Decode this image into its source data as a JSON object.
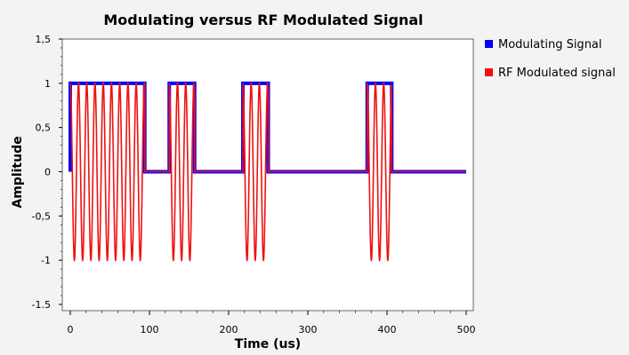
{
  "colors": {
    "modulating": "#0000ff",
    "modulated": "#ee1111",
    "plot_bg": "#ffffff",
    "page_bg": "#f3f3f3"
  },
  "chart_data": {
    "type": "line",
    "title": "Modulating versus RF Modulated Signal",
    "xlabel": "Time (us)",
    "ylabel": "Amplitude",
    "xlim": [
      0,
      500
    ],
    "ylim": [
      -1.5,
      1.5
    ],
    "x_ticks": [
      0,
      100,
      200,
      300,
      400,
      500
    ],
    "x_tick_labels": [
      "0",
      "100",
      "200",
      "300",
      "400",
      "500"
    ],
    "y_ticks": [
      1.5,
      1,
      0.5,
      0,
      -0.5,
      -1,
      -1.5
    ],
    "y_tick_labels": [
      "1,5",
      "1",
      "0,5",
      "0",
      "-0,5",
      "-1",
      "-1.5"
    ],
    "grid": false,
    "legend_position": "right",
    "series": [
      {
        "name": "Modulating Signal",
        "x": [
          0,
          0,
          94,
          94,
          125,
          125,
          157,
          157,
          218,
          218,
          250,
          250,
          375,
          375,
          406,
          406,
          500
        ],
        "y": [
          0,
          1,
          1,
          0,
          0,
          1,
          1,
          0,
          0,
          1,
          1,
          0,
          0,
          1,
          1,
          0,
          0
        ]
      },
      {
        "name": "RF Modulated signal",
        "on_intervals": [
          [
            0,
            94
          ],
          [
            125,
            157
          ],
          [
            218,
            250
          ],
          [
            375,
            406
          ]
        ],
        "cycle_period_us": 10.4,
        "amplitude": 1
      }
    ]
  }
}
